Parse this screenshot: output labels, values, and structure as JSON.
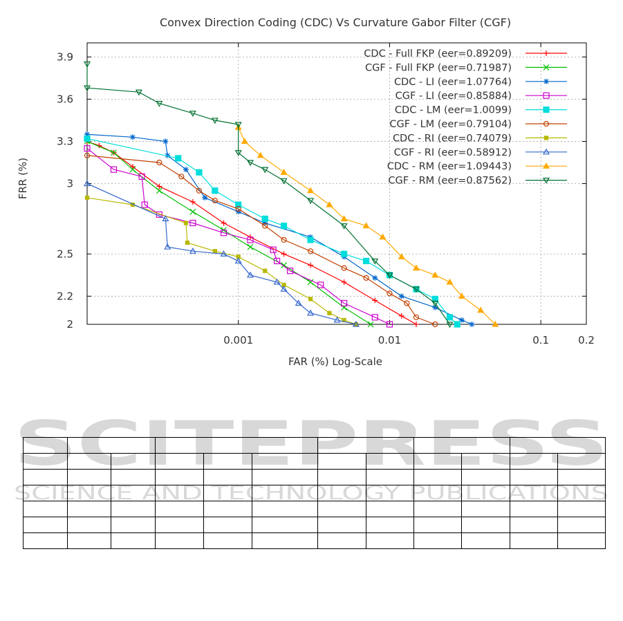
{
  "colors": {
    "text": "#333333",
    "grid": "#a0a0a0",
    "axis": "#000000",
    "watermark": "#d8d8d8"
  },
  "watermark": {
    "line1": "SCITEPRESS",
    "line2": "SCIENCE AND TECHNOLOGY PUBLICATIONS"
  },
  "chart_data": {
    "type": "line",
    "title": "Convex Direction Coding (CDC) Vs Curvature Gabor Filter (CGF)",
    "xlabel": "FAR (%) Log-Scale",
    "ylabel": "FRR (%)",
    "x_scale": "log",
    "xlim": [
      0.0001,
      0.2
    ],
    "ylim": [
      2,
      4
    ],
    "x_ticks": [
      {
        "value": 0.001,
        "label": "0.001"
      },
      {
        "value": 0.01,
        "label": "0.01"
      },
      {
        "value": 0.1,
        "label": "0.1"
      },
      {
        "value": 0.2,
        "label": "0.2"
      }
    ],
    "y_ticks": [
      {
        "value": 2,
        "label": "2"
      },
      {
        "value": 2.2,
        "label": "2.2"
      },
      {
        "value": 2.5,
        "label": "2.5"
      },
      {
        "value": 3,
        "label": "3"
      },
      {
        "value": 3.3,
        "label": "3.3"
      },
      {
        "value": 3.6,
        "label": "3.6"
      },
      {
        "value": 3.9,
        "label": "3.9"
      }
    ],
    "grid": true,
    "legend_position": "top-right",
    "series": [
      {
        "name": "CDC - Full FKP (eer=0.89209)",
        "color": "#ff0000",
        "marker": "plus",
        "x": [
          0.0001,
          0.00012,
          0.00015,
          0.0002,
          0.0003,
          0.0005,
          0.0008,
          0.0012,
          0.002,
          0.003,
          0.005,
          0.008,
          0.012,
          0.015
        ],
        "y": [
          3.3,
          3.27,
          3.22,
          3.12,
          2.98,
          2.87,
          2.72,
          2.62,
          2.5,
          2.42,
          2.3,
          2.17,
          2.06,
          2
        ]
      },
      {
        "name": "CGF - Full FKP (eer=0.71987)",
        "color": "#00c000",
        "marker": "x",
        "x": [
          0.0001,
          0.00015,
          0.0002,
          0.0003,
          0.0005,
          0.0008,
          0.0012,
          0.002,
          0.003,
          0.005,
          0.0075
        ],
        "y": [
          3.3,
          3.22,
          3.1,
          2.95,
          2.8,
          2.67,
          2.55,
          2.42,
          2.3,
          2.12,
          2
        ]
      },
      {
        "name": "CDC - LI (eer=1.07764)",
        "color": "#0066cc",
        "marker": "star",
        "x": [
          0.0001,
          0.0002,
          0.00033,
          0.00034,
          0.00045,
          0.0006,
          0.001,
          0.0015,
          0.003,
          0.005,
          0.008,
          0.012,
          0.02,
          0.03,
          0.035
        ],
        "y": [
          3.35,
          3.33,
          3.3,
          3.2,
          3.1,
          2.9,
          2.8,
          2.72,
          2.62,
          2.48,
          2.33,
          2.2,
          2.12,
          2.03,
          2
        ]
      },
      {
        "name": "CGF - LI (eer=0.85884)",
        "color": "#cc00cc",
        "marker": "box",
        "x": [
          0.0001,
          0.00015,
          0.00023,
          0.00024,
          0.0003,
          0.0005,
          0.0008,
          0.0012,
          0.0017,
          0.0018,
          0.0022,
          0.0035,
          0.005,
          0.008,
          0.01
        ],
        "y": [
          3.25,
          3.1,
          3.05,
          2.85,
          2.78,
          2.72,
          2.65,
          2.6,
          2.53,
          2.45,
          2.38,
          2.28,
          2.15,
          2.05,
          2
        ]
      },
      {
        "name": "CDC - LM (eer=1.0099)",
        "color": "#00dddd",
        "marker": "square-filled",
        "x": [
          0.0001,
          0.0004,
          0.00055,
          0.0007,
          0.001,
          0.0015,
          0.002,
          0.003,
          0.005,
          0.007,
          0.01,
          0.015,
          0.02,
          0.025,
          0.028
        ],
        "y": [
          3.32,
          3.18,
          3.08,
          2.95,
          2.85,
          2.75,
          2.7,
          2.6,
          2.5,
          2.45,
          2.35,
          2.25,
          2.18,
          2.05,
          2
        ]
      },
      {
        "name": "CGF - LM (eer=0.79104)",
        "color": "#c04000",
        "marker": "circle",
        "x": [
          0.0001,
          0.0003,
          0.00042,
          0.00055,
          0.0007,
          0.001,
          0.0015,
          0.002,
          0.003,
          0.005,
          0.007,
          0.01,
          0.013,
          0.015,
          0.02
        ],
        "y": [
          3.2,
          3.15,
          3.05,
          2.95,
          2.88,
          2.82,
          2.7,
          2.6,
          2.52,
          2.4,
          2.33,
          2.22,
          2.15,
          2.05,
          2
        ]
      },
      {
        "name": "CDC - RI (eer=0.74079)",
        "color": "#b8b800",
        "marker": "square-small",
        "x": [
          0.0001,
          0.0002,
          0.00045,
          0.00046,
          0.0007,
          0.001,
          0.0015,
          0.002,
          0.003,
          0.004,
          0.005,
          0.006
        ],
        "y": [
          2.9,
          2.85,
          2.72,
          2.58,
          2.52,
          2.48,
          2.38,
          2.28,
          2.18,
          2.08,
          2.03,
          2
        ]
      },
      {
        "name": "CGF - RI (eer=0.58912)",
        "color": "#3366cc",
        "marker": "triangle",
        "x": [
          0.0001,
          0.00033,
          0.00034,
          0.0005,
          0.0008,
          0.001,
          0.0012,
          0.0018,
          0.002,
          0.0025,
          0.003,
          0.0045,
          0.006
        ],
        "y": [
          3.0,
          2.75,
          2.55,
          2.52,
          2.5,
          2.45,
          2.35,
          2.3,
          2.25,
          2.15,
          2.08,
          2.03,
          2
        ]
      },
      {
        "name": "CDC - RM (eer=1.09443)",
        "color": "#ffaa00",
        "marker": "triangle-filled",
        "x": [
          0.001,
          0.0011,
          0.0014,
          0.002,
          0.003,
          0.004,
          0.005,
          0.007,
          0.009,
          0.012,
          0.015,
          0.02,
          0.025,
          0.03,
          0.04,
          0.05
        ],
        "y": [
          3.4,
          3.3,
          3.2,
          3.08,
          2.95,
          2.85,
          2.75,
          2.7,
          2.62,
          2.48,
          2.4,
          2.35,
          2.3,
          2.2,
          2.1,
          2
        ]
      },
      {
        "name": "CGF - RM (eer=0.87562)",
        "color": "#007030",
        "marker": "triangle-down",
        "x": [
          0.0001,
          0.0001,
          0.00022,
          0.0003,
          0.0005,
          0.0007,
          0.001,
          0.001,
          0.0012,
          0.0015,
          0.002,
          0.003,
          0.005,
          0.008,
          0.01,
          0.015,
          0.02,
          0.025
        ],
        "y": [
          3.85,
          3.68,
          3.65,
          3.57,
          3.5,
          3.45,
          3.42,
          3.22,
          3.15,
          3.1,
          3.02,
          2.88,
          2.7,
          2.45,
          2.35,
          2.25,
          2.15,
          2
        ]
      }
    ]
  }
}
